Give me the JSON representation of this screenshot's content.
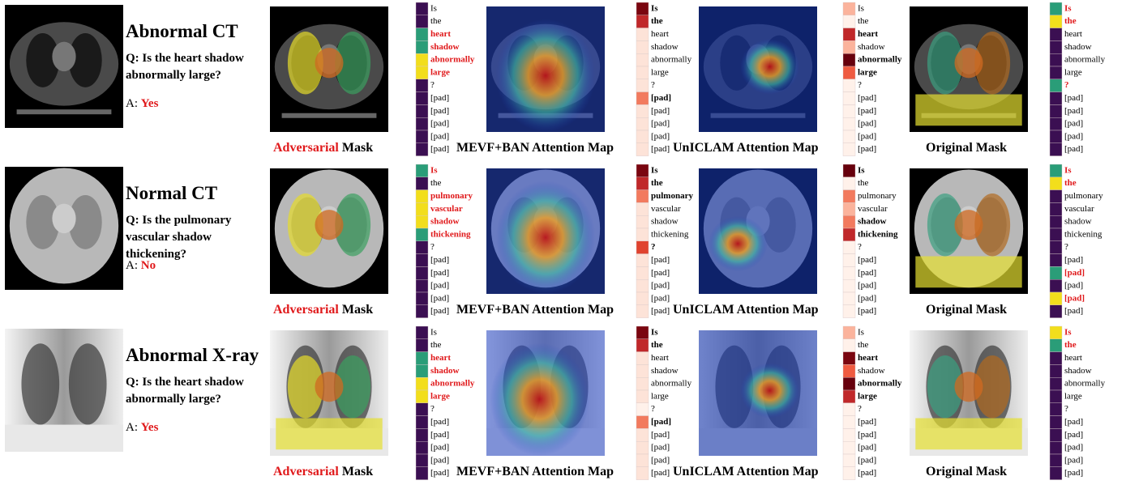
{
  "rows": [
    {
      "title": "Abnormal CT",
      "question": "Q: Is the heart shadow abnormally large?",
      "answer_label": "A:",
      "answer": "Yes",
      "tokens": [
        "Is",
        "the",
        "heart",
        "shadow",
        "abnormally",
        "large",
        "?",
        "[pad]",
        "[pad]",
        "[pad]",
        "[pad]",
        "[pad]"
      ],
      "panels": [
        {
          "caption_highlight": "Adversarial",
          "caption": "Mask",
          "colors": [
            "#3b0f52",
            "#3b0f52",
            "#2a9d78",
            "#2a9d78",
            "#f2de1c",
            "#f2de1c",
            "#3b0f52",
            "#3b0f52",
            "#3b0f52",
            "#3b0f52",
            "#3b0f52",
            "#3b0f52"
          ],
          "bold_tokens": [],
          "red_tokens": [
            2,
            3,
            4,
            5
          ]
        },
        {
          "caption": "MEVF+BAN Attention Map",
          "colors": [
            "#7a0610",
            "#c0282a",
            "#fde3d8",
            "#fde3d8",
            "#fde3d8",
            "#fde3d8",
            "#fde3d8",
            "#f27a5e",
            "#fde3d8",
            "#fde3d8",
            "#fde3d8",
            "#fde3d8"
          ],
          "bold_tokens": [
            0,
            1,
            7
          ],
          "red_tokens": []
        },
        {
          "caption": "UnICLAM Attention Map",
          "colors": [
            "#fbb39c",
            "#fff1ea",
            "#c0282a",
            "#fbb39c",
            "#67000d",
            "#ef5b41",
            "#fff1ea",
            "#fff1ea",
            "#fff1ea",
            "#fff1ea",
            "#fff1ea",
            "#fff1ea"
          ],
          "bold_tokens": [
            2,
            4,
            5
          ],
          "red_tokens": []
        },
        {
          "caption": "Original Mask",
          "colors": [
            "#2a9d78",
            "#f2de1c",
            "#3b0f52",
            "#3b0f52",
            "#3b0f52",
            "#3b0f52",
            "#2a9d78",
            "#3b0f52",
            "#3b0f52",
            "#3b0f52",
            "#3b0f52",
            "#3b0f52"
          ],
          "bold_tokens": [],
          "red_tokens": [
            0,
            1,
            6
          ]
        }
      ]
    },
    {
      "title": "Normal CT",
      "question": "Q: Is the pulmonary vascular shadow thickening?",
      "answer_label": "A:",
      "answer": "No",
      "tokens": [
        "Is",
        "the",
        "pulmonary",
        "vascular",
        "shadow",
        "thickening",
        "?",
        "[pad]",
        "[pad]",
        "[pad]",
        "[pad]",
        "[pad]"
      ],
      "panels": [
        {
          "caption_highlight": "Adversarial",
          "caption": "Mask",
          "colors": [
            "#2a9d78",
            "#3b0f52",
            "#f2de1c",
            "#f2de1c",
            "#f2de1c",
            "#2a9d78",
            "#3b0f52",
            "#3b0f52",
            "#3b0f52",
            "#3b0f52",
            "#3b0f52",
            "#3b0f52"
          ],
          "bold_tokens": [],
          "red_tokens": [
            0,
            2,
            3,
            4,
            5
          ]
        },
        {
          "caption": "MEVF+BAN Attention Map",
          "colors": [
            "#7a0610",
            "#c0282a",
            "#f27a5e",
            "#fde3d8",
            "#fde3d8",
            "#fde3d8",
            "#e0432f",
            "#fde3d8",
            "#fde3d8",
            "#fde3d8",
            "#fde3d8",
            "#fde3d8"
          ],
          "bold_tokens": [
            0,
            1,
            2,
            6
          ],
          "red_tokens": []
        },
        {
          "caption": "UnICLAM Attention Map",
          "colors": [
            "#67000d",
            "#fff1ea",
            "#f27a5e",
            "#fbb39c",
            "#f27a5e",
            "#c0282a",
            "#fff1ea",
            "#fff1ea",
            "#fff1ea",
            "#fff1ea",
            "#fff1ea",
            "#fff1ea"
          ],
          "bold_tokens": [
            0,
            4,
            5
          ],
          "red_tokens": []
        },
        {
          "caption": "Original Mask",
          "colors": [
            "#2a9d78",
            "#f2de1c",
            "#3b0f52",
            "#3b0f52",
            "#3b0f52",
            "#3b0f52",
            "#3b0f52",
            "#3b0f52",
            "#2a9d78",
            "#3b0f52",
            "#f2de1c",
            "#3b0f52"
          ],
          "bold_tokens": [],
          "red_tokens": [
            0,
            1,
            8,
            10
          ]
        }
      ]
    },
    {
      "title": "Abnormal X-ray",
      "question": "Q: Is the heart shadow abnormally large?",
      "answer_label": "A:",
      "answer": "Yes",
      "tokens": [
        "Is",
        "the",
        "heart",
        "shadow",
        "abnormally",
        "large",
        "?",
        "[pad]",
        "[pad]",
        "[pad]",
        "[pad]",
        "[pad]"
      ],
      "panels": [
        {
          "caption_highlight": "Adversarial",
          "caption": "Mask",
          "colors": [
            "#3b0f52",
            "#3b0f52",
            "#2a9d78",
            "#2a9d78",
            "#f2de1c",
            "#f2de1c",
            "#3b0f52",
            "#3b0f52",
            "#3b0f52",
            "#3b0f52",
            "#3b0f52",
            "#3b0f52"
          ],
          "bold_tokens": [],
          "red_tokens": [
            2,
            3,
            4,
            5
          ]
        },
        {
          "caption": "MEVF+BAN Attention Map",
          "colors": [
            "#7a0610",
            "#c0282a",
            "#fde3d8",
            "#fde3d8",
            "#fde3d8",
            "#fde3d8",
            "#fff1ea",
            "#f27a5e",
            "#fde3d8",
            "#fde3d8",
            "#fde3d8",
            "#fde3d8"
          ],
          "bold_tokens": [
            0,
            1,
            7
          ],
          "red_tokens": []
        },
        {
          "caption": "UnICLAM Attention Map",
          "colors": [
            "#fbb39c",
            "#fff1ea",
            "#7a0610",
            "#ef5b41",
            "#67000d",
            "#c0282a",
            "#fff1ea",
            "#fff1ea",
            "#fff1ea",
            "#fff1ea",
            "#fff1ea",
            "#fff1ea"
          ],
          "bold_tokens": [
            2,
            4,
            5
          ],
          "red_tokens": []
        },
        {
          "caption": "Original Mask",
          "colors": [
            "#f2de1c",
            "#2a9d78",
            "#3b0f52",
            "#3b0f52",
            "#3b0f52",
            "#3b0f52",
            "#3b0f52",
            "#3b0f52",
            "#3b0f52",
            "#3b0f52",
            "#3b0f52",
            "#3b0f52"
          ],
          "bold_tokens": [],
          "red_tokens": [
            0,
            1
          ]
        }
      ]
    }
  ]
}
